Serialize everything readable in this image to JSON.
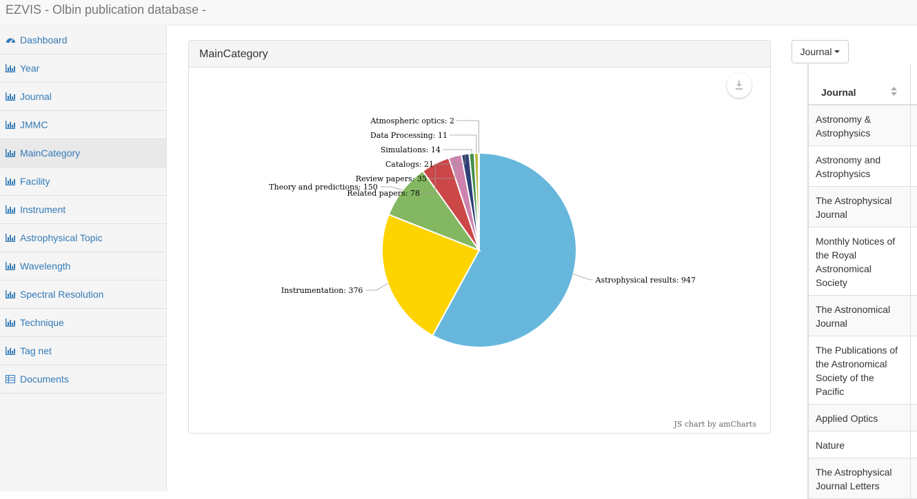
{
  "app": {
    "title": "EZVIS - Olbin publication database -"
  },
  "sidebar": {
    "items": [
      {
        "label": "Dashboard",
        "icon": "dashboard-icon",
        "active": false
      },
      {
        "label": "Year",
        "icon": "bar-chart-icon",
        "active": false
      },
      {
        "label": "Journal",
        "icon": "bar-chart-icon",
        "active": false
      },
      {
        "label": "JMMC",
        "icon": "bar-chart-icon",
        "active": false
      },
      {
        "label": "MainCategory",
        "icon": "bar-chart-icon",
        "active": true
      },
      {
        "label": "Facility",
        "icon": "bar-chart-icon",
        "active": false
      },
      {
        "label": "Instrument",
        "icon": "bar-chart-icon",
        "active": false
      },
      {
        "label": "Astrophysical Topic",
        "icon": "bar-chart-icon",
        "active": false
      },
      {
        "label": "Wavelength",
        "icon": "bar-chart-icon",
        "active": false
      },
      {
        "label": "Spectral Resolution",
        "icon": "bar-chart-icon",
        "active": false
      },
      {
        "label": "Technique",
        "icon": "bar-chart-icon",
        "active": false
      },
      {
        "label": "Tag net",
        "icon": "bar-chart-icon",
        "active": false
      },
      {
        "label": "Documents",
        "icon": "table-icon",
        "active": false
      }
    ]
  },
  "panel": {
    "title": "MainCategory",
    "credit": "JS chart by amCharts",
    "export_icon": "download-icon"
  },
  "chart_data": {
    "type": "pie",
    "slices": [
      {
        "label": "Astrophysical results",
        "value": 947,
        "color": "#67b7dc"
      },
      {
        "label": "Instrumentation",
        "value": 376,
        "color": "#fdd400"
      },
      {
        "label": "Theory and predictions",
        "value": 150,
        "color": "#84b761"
      },
      {
        "label": "Related papers",
        "value": 78,
        "color": "#cc4748"
      },
      {
        "label": "Review papers",
        "value": 35,
        "color": "#cd82ad"
      },
      {
        "label": "Catalogs",
        "value": 21,
        "color": "#2f4074"
      },
      {
        "label": "Simulations",
        "value": 14,
        "color": "#448e4d"
      },
      {
        "label": "Data Processing",
        "value": 11,
        "color": "#b7b83f"
      },
      {
        "label": "Atmospheric optics",
        "value": 2,
        "color": "#b9783f"
      }
    ],
    "label_format": "{label}: {value}"
  },
  "dropdown": {
    "label": "Journal"
  },
  "journal_table": {
    "header": "Journal",
    "rows": [
      "Astronomy & Astrophysics",
      "Astronomy and Astrophysics",
      "The Astrophysical Journal",
      "Monthly Notices of the Royal Astronomical Society",
      "The Astronomical Journal",
      "The Publications of the Astronomical Society of the Pacific",
      "Applied Optics",
      "Nature",
      "The Astrophysical Journal Letters"
    ]
  }
}
